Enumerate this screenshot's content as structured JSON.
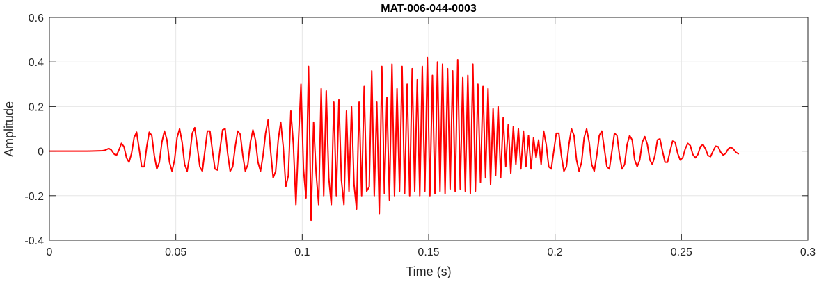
{
  "chart_data": {
    "type": "line",
    "title": "MAT-006-044-0003",
    "xlabel": "Time (s)",
    "ylabel": "Amplitude",
    "xlim": [
      0,
      0.3
    ],
    "ylim": [
      -0.4,
      0.6
    ],
    "xticks": [
      0,
      0.05,
      0.1,
      0.15,
      0.2,
      0.25,
      0.3
    ],
    "xtick_labels": [
      "0",
      "0.05",
      "0.1",
      "0.15",
      "0.2",
      "0.25",
      "0.3"
    ],
    "yticks": [
      -0.4,
      -0.2,
      0,
      0.2,
      0.4,
      0.6
    ],
    "ytick_labels": [
      "-0.4",
      "-0.2",
      "0",
      "0.2",
      "0.4",
      "0.6"
    ],
    "grid": true,
    "legend": "none",
    "line_color": "#ff0000",
    "series": [
      {
        "x_start": 0,
        "x_end": 0.2725,
        "points": [
          [
            0,
            0
          ],
          [
            0.005,
            0
          ],
          [
            0.01,
            0
          ],
          [
            0.015,
            0
          ],
          [
            0.019,
            0.001
          ],
          [
            0.021,
            0.002
          ],
          [
            0.022,
            0.004
          ],
          [
            0.0235,
            0.012
          ],
          [
            0.0245,
            0.005
          ],
          [
            0.0255,
            -0.012
          ],
          [
            0.0265,
            -0.02
          ],
          [
            0.0275,
            0.005
          ],
          [
            0.0285,
            0.035
          ],
          [
            0.0295,
            0.02
          ],
          [
            0.0305,
            -0.03
          ],
          [
            0.0315,
            -0.05
          ],
          [
            0.0325,
            -0.01
          ],
          [
            0.0335,
            0.06
          ],
          [
            0.0345,
            0.085
          ],
          [
            0.0355,
            0.01
          ],
          [
            0.0365,
            -0.07
          ],
          [
            0.0375,
            -0.07
          ],
          [
            0.0385,
            0.02
          ],
          [
            0.0395,
            0.085
          ],
          [
            0.0405,
            0.07
          ],
          [
            0.0415,
            -0.02
          ],
          [
            0.0425,
            -0.08
          ],
          [
            0.0435,
            -0.05
          ],
          [
            0.0445,
            0.04
          ],
          [
            0.0455,
            0.09
          ],
          [
            0.0465,
            0.05
          ],
          [
            0.0475,
            -0.05
          ],
          [
            0.0485,
            -0.09
          ],
          [
            0.0495,
            -0.04
          ],
          [
            0.0505,
            0.06
          ],
          [
            0.0515,
            0.1
          ],
          [
            0.0525,
            0.04
          ],
          [
            0.0535,
            -0.06
          ],
          [
            0.0545,
            -0.09
          ],
          [
            0.0555,
            -0.02
          ],
          [
            0.0565,
            0.08
          ],
          [
            0.0575,
            0.105
          ],
          [
            0.0585,
            0.02
          ],
          [
            0.0595,
            -0.07
          ],
          [
            0.0605,
            -0.09
          ],
          [
            0.0615,
            0.0
          ],
          [
            0.0625,
            0.09
          ],
          [
            0.0635,
            0.09
          ],
          [
            0.0645,
            0.0
          ],
          [
            0.0655,
            -0.08
          ],
          [
            0.0665,
            -0.085
          ],
          [
            0.0675,
            0.01
          ],
          [
            0.0685,
            0.095
          ],
          [
            0.0695,
            0.1
          ],
          [
            0.0705,
            -0.01
          ],
          [
            0.0715,
            -0.09
          ],
          [
            0.0725,
            -0.07
          ],
          [
            0.0735,
            0.02
          ],
          [
            0.0745,
            0.09
          ],
          [
            0.0755,
            0.075
          ],
          [
            0.0765,
            -0.02
          ],
          [
            0.0775,
            -0.09
          ],
          [
            0.0785,
            -0.06
          ],
          [
            0.0795,
            0.04
          ],
          [
            0.0805,
            0.095
          ],
          [
            0.0815,
            0.05
          ],
          [
            0.0825,
            -0.05
          ],
          [
            0.0835,
            -0.09
          ],
          [
            0.0845,
            -0.02
          ],
          [
            0.0855,
            0.08
          ],
          [
            0.0865,
            0.14
          ],
          [
            0.0875,
            0.0
          ],
          [
            0.0885,
            -0.12
          ],
          [
            0.0895,
            -0.09
          ],
          [
            0.0905,
            0.05
          ],
          [
            0.0915,
            0.13
          ],
          [
            0.0925,
            0.02
          ],
          [
            0.0935,
            -0.16
          ],
          [
            0.0945,
            -0.11
          ],
          [
            0.0955,
            0.18
          ],
          [
            0.0965,
            0.03
          ],
          [
            0.0975,
            -0.24
          ],
          [
            0.0985,
            0.04
          ],
          [
            0.0995,
            0.3
          ],
          [
            0.1005,
            -0.08
          ],
          [
            0.1015,
            -0.21
          ],
          [
            0.1025,
            0.38
          ],
          [
            0.1035,
            -0.31
          ],
          [
            0.1045,
            0.13
          ],
          [
            0.1055,
            -0.1
          ],
          [
            0.1065,
            -0.24
          ],
          [
            0.1075,
            0.28
          ],
          [
            0.1085,
            -0.2
          ],
          [
            0.1095,
            0.27
          ],
          [
            0.1105,
            -0.12
          ],
          [
            0.1115,
            -0.24
          ],
          [
            0.1125,
            0.22
          ],
          [
            0.1135,
            -0.2
          ],
          [
            0.1145,
            0.23
          ],
          [
            0.1155,
            -0.13
          ],
          [
            0.1165,
            -0.24
          ],
          [
            0.1175,
            0.18
          ],
          [
            0.1185,
            -0.18
          ],
          [
            0.1195,
            0.2
          ],
          [
            0.1205,
            -0.15
          ],
          [
            0.1215,
            -0.26
          ],
          [
            0.1225,
            0.22
          ],
          [
            0.1235,
            -0.2
          ],
          [
            0.1245,
            0.29
          ],
          [
            0.1255,
            -0.18
          ],
          [
            0.1265,
            -0.16
          ],
          [
            0.1275,
            0.36
          ],
          [
            0.1285,
            -0.2
          ],
          [
            0.1295,
            0.22
          ],
          [
            0.1305,
            -0.28
          ],
          [
            0.1315,
            0.38
          ],
          [
            0.1325,
            -0.19
          ],
          [
            0.1335,
            0.24
          ],
          [
            0.1345,
            -0.22
          ],
          [
            0.1355,
            0.39
          ],
          [
            0.1365,
            -0.2
          ],
          [
            0.1375,
            0.28
          ],
          [
            0.1385,
            -0.18
          ],
          [
            0.1395,
            0.38
          ],
          [
            0.1405,
            -0.19
          ],
          [
            0.1415,
            0.3
          ],
          [
            0.1425,
            -0.2
          ],
          [
            0.1435,
            0.37
          ],
          [
            0.1445,
            -0.18
          ],
          [
            0.1455,
            0.32
          ],
          [
            0.1465,
            -0.2
          ],
          [
            0.1475,
            0.38
          ],
          [
            0.1485,
            -0.18
          ],
          [
            0.1495,
            0.42
          ],
          [
            0.1505,
            -0.2
          ],
          [
            0.1515,
            0.34
          ],
          [
            0.1525,
            -0.19
          ],
          [
            0.1535,
            0.4
          ],
          [
            0.1545,
            -0.18
          ],
          [
            0.1555,
            0.39
          ],
          [
            0.1565,
            -0.19
          ],
          [
            0.1575,
            0.37
          ],
          [
            0.1585,
            -0.17
          ],
          [
            0.1595,
            0.36
          ],
          [
            0.1605,
            -0.18
          ],
          [
            0.1615,
            0.41
          ],
          [
            0.1625,
            -0.17
          ],
          [
            0.1635,
            0.33
          ],
          [
            0.1645,
            -0.18
          ],
          [
            0.1655,
            0.34
          ],
          [
            0.1665,
            -0.19
          ],
          [
            0.1675,
            0.39
          ],
          [
            0.1685,
            -0.18
          ],
          [
            0.1695,
            0.3
          ],
          [
            0.1705,
            -0.14
          ],
          [
            0.1715,
            0.29
          ],
          [
            0.1725,
            -0.12
          ],
          [
            0.1735,
            0.28
          ],
          [
            0.1745,
            -0.15
          ],
          [
            0.1755,
            0.19
          ],
          [
            0.1765,
            -0.11
          ],
          [
            0.1775,
            0.2
          ],
          [
            0.1785,
            -0.12
          ],
          [
            0.1795,
            0.15
          ],
          [
            0.1805,
            -0.07
          ],
          [
            0.1815,
            0.12
          ],
          [
            0.1825,
            -0.1
          ],
          [
            0.1835,
            0.11
          ],
          [
            0.1845,
            -0.06
          ],
          [
            0.1855,
            0.1
          ],
          [
            0.1865,
            -0.08
          ],
          [
            0.1875,
            0.09
          ],
          [
            0.1885,
            -0.07
          ],
          [
            0.1895,
            0.07
          ],
          [
            0.1905,
            -0.08
          ],
          [
            0.1915,
            0.06
          ],
          [
            0.1925,
            -0.03
          ],
          [
            0.1935,
            0.05
          ],
          [
            0.1945,
            -0.06
          ],
          [
            0.1955,
            0.09
          ],
          [
            0.1965,
            0.03
          ],
          [
            0.1975,
            -0.07
          ],
          [
            0.1985,
            -0.08
          ],
          [
            0.1995,
            0.0
          ],
          [
            0.2005,
            0.08
          ],
          [
            0.2015,
            0.08
          ],
          [
            0.2025,
            -0.02
          ],
          [
            0.2035,
            -0.09
          ],
          [
            0.2045,
            -0.07
          ],
          [
            0.2055,
            0.03
          ],
          [
            0.2065,
            0.1
          ],
          [
            0.2075,
            0.07
          ],
          [
            0.2085,
            -0.04
          ],
          [
            0.2095,
            -0.09
          ],
          [
            0.2105,
            -0.05
          ],
          [
            0.2115,
            0.06
          ],
          [
            0.2125,
            0.1
          ],
          [
            0.2135,
            0.04
          ],
          [
            0.2145,
            -0.06
          ],
          [
            0.2155,
            -0.09
          ],
          [
            0.2165,
            -0.02
          ],
          [
            0.2175,
            0.07
          ],
          [
            0.2185,
            0.09
          ],
          [
            0.2195,
            0.01
          ],
          [
            0.2205,
            -0.07
          ],
          [
            0.2215,
            -0.08
          ],
          [
            0.2225,
            0.0
          ],
          [
            0.2235,
            0.08
          ],
          [
            0.2245,
            0.07
          ],
          [
            0.2255,
            -0.02
          ],
          [
            0.2265,
            -0.08
          ],
          [
            0.2275,
            -0.06
          ],
          [
            0.2285,
            0.03
          ],
          [
            0.2295,
            0.07
          ],
          [
            0.2305,
            0.05
          ],
          [
            0.2315,
            -0.04
          ],
          [
            0.2325,
            -0.07
          ],
          [
            0.2335,
            -0.04
          ],
          [
            0.2345,
            0.04
          ],
          [
            0.2355,
            0.065
          ],
          [
            0.2365,
            0.03
          ],
          [
            0.2375,
            -0.04
          ],
          [
            0.2385,
            -0.06
          ],
          [
            0.2395,
            -0.02
          ],
          [
            0.2405,
            0.05
          ],
          [
            0.2415,
            0.055
          ],
          [
            0.2425,
            0.0
          ],
          [
            0.2435,
            -0.05
          ],
          [
            0.2445,
            -0.05
          ],
          [
            0.2455,
            0.0
          ],
          [
            0.2465,
            0.045
          ],
          [
            0.2475,
            0.04
          ],
          [
            0.2485,
            -0.01
          ],
          [
            0.2495,
            -0.04
          ],
          [
            0.2505,
            -0.03
          ],
          [
            0.2515,
            0.01
          ],
          [
            0.2525,
            0.035
          ],
          [
            0.2535,
            0.025
          ],
          [
            0.2545,
            -0.015
          ],
          [
            0.2555,
            -0.03
          ],
          [
            0.2565,
            -0.015
          ],
          [
            0.2575,
            0.02
          ],
          [
            0.2585,
            0.03
          ],
          [
            0.2595,
            0.01
          ],
          [
            0.2605,
            -0.02
          ],
          [
            0.2615,
            -0.025
          ],
          [
            0.2625,
            0.0
          ],
          [
            0.2635,
            0.022
          ],
          [
            0.2645,
            0.02
          ],
          [
            0.2655,
            -0.005
          ],
          [
            0.2665,
            -0.018
          ],
          [
            0.2675,
            -0.01
          ],
          [
            0.2685,
            0.01
          ],
          [
            0.2695,
            0.018
          ],
          [
            0.2705,
            0.01
          ],
          [
            0.2715,
            -0.005
          ],
          [
            0.2725,
            -0.012
          ]
        ]
      }
    ]
  }
}
